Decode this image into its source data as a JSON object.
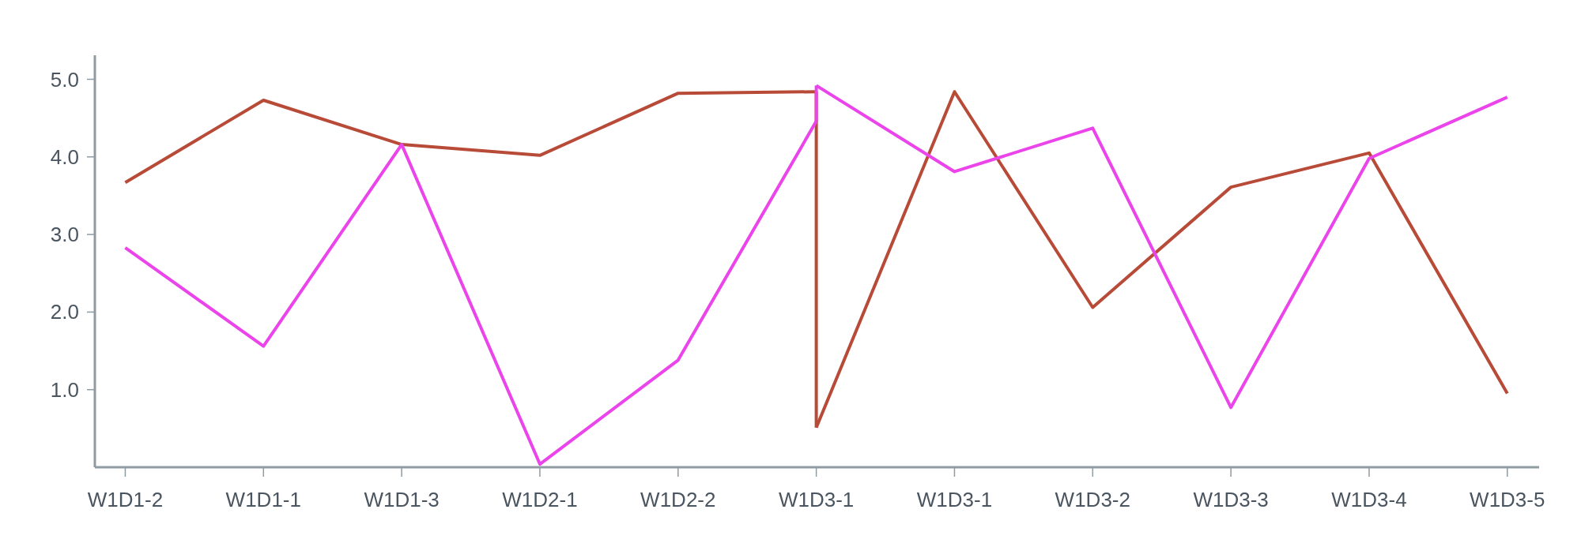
{
  "chart_data": {
    "type": "line",
    "categories": [
      "W1D1-2",
      "W1D1-1",
      "W1D1-3",
      "W1D2-1",
      "W1D2-2",
      "W1D3-1",
      "W1D3-1",
      "W1D3-2",
      "W1D3-3",
      "W1D3-4",
      "W1D3-5"
    ],
    "ylim": [
      0,
      5.31
    ],
    "yticks": [
      {
        "value": 1,
        "label": "1.0"
      },
      {
        "value": 2,
        "label": "2.0"
      },
      {
        "value": 3,
        "label": "3.0"
      },
      {
        "value": 4,
        "label": "4.0"
      },
      {
        "value": 5,
        "label": "5.0"
      }
    ],
    "grid": false,
    "marker": "none",
    "line_style": "solid",
    "series": [
      {
        "color": "#b84a38",
        "values": [
          3.67,
          4.73,
          4.16,
          4.02,
          4.82,
          4.84,
          null,
          null,
          null,
          null,
          null
        ]
      },
      {
        "color": "#b84a38",
        "x": [
          "W1D3-1",
          "W1D3-1"
        ],
        "values": [
          4.84,
          0.51
        ]
      },
      {
        "color": "#b84a38",
        "values": [
          null,
          null,
          null,
          null,
          null,
          0.51,
          4.84,
          2.06,
          3.61,
          4.05,
          0.95
        ]
      },
      {
        "color": "#ea44ea",
        "values": [
          2.83,
          1.56,
          4.16,
          0.04,
          1.38,
          4.46,
          null,
          null,
          null,
          null,
          null
        ]
      },
      {
        "color": "#ea44ea",
        "x": [
          "W1D3-1",
          "W1D3-1"
        ],
        "values": [
          4.46,
          4.92
        ]
      },
      {
        "color": "#ea44ea",
        "values": [
          null,
          null,
          null,
          null,
          null,
          4.92,
          3.81,
          4.37,
          0.77,
          3.98,
          4.77
        ]
      }
    ]
  }
}
